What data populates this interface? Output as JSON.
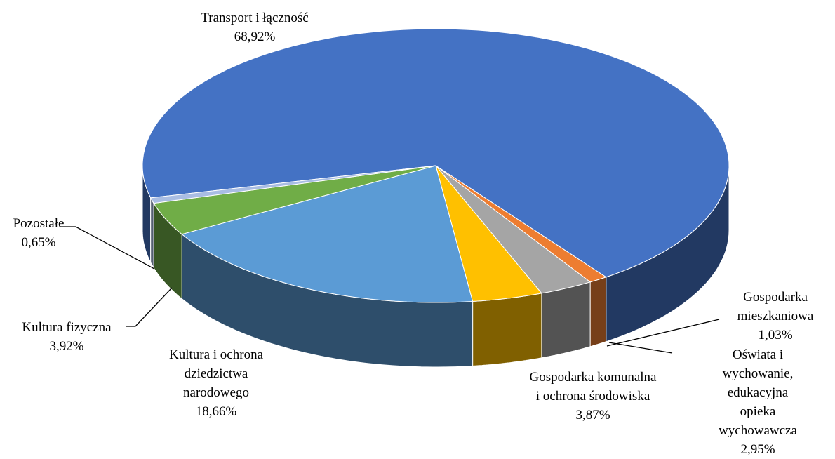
{
  "chart_data": {
    "type": "pie3d",
    "categories": [
      "Transport i łączność",
      "Gospodarka\nmieszkaniowa",
      "Oświata i wychowanie,\nedukacyjna opieka\nwychowawcza",
      "Gospodarka komunalna\ni ochrona środowiska",
      "Kultura i ochrona\ndziedzictwa\nnarodowego",
      "Kultura fizyczna",
      "Pozostałe"
    ],
    "values": [
      68.92,
      1.03,
      2.95,
      3.87,
      18.66,
      3.92,
      0.65
    ],
    "value_labels": [
      "68,92%",
      "1,03%",
      "2,95%",
      "3,87%",
      "18,66%",
      "3,92%",
      "0,65%"
    ],
    "colors": [
      "#4472c4",
      "#ed7d31",
      "#a5a5a5",
      "#ffc000",
      "#5b9bd5",
      "#70ad47",
      "#a9bde3"
    ]
  }
}
